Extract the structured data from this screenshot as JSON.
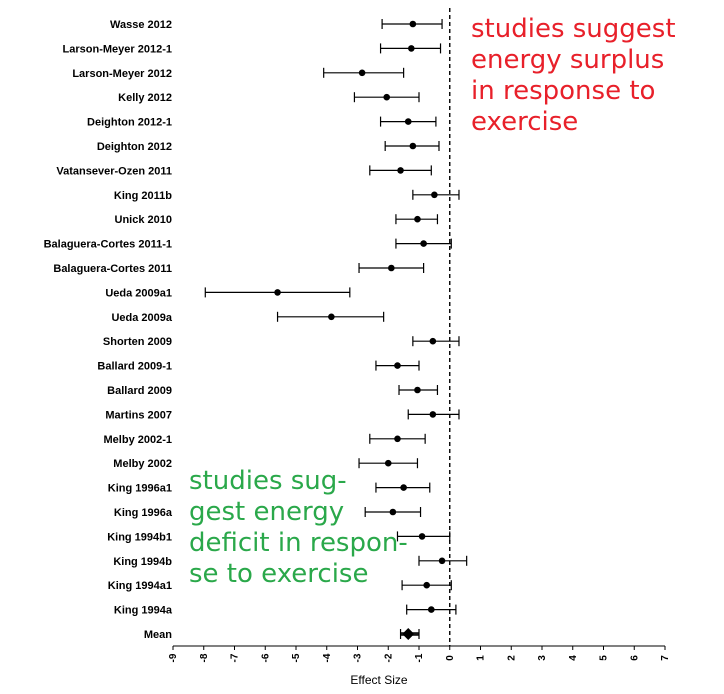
{
  "chart_data": {
    "type": "forest",
    "xlabel": "Effect Size",
    "xlim": [
      -9,
      7
    ],
    "reference_line": 0,
    "x_ticks": [
      "-9",
      "-8",
      "-7",
      "-6",
      "-5",
      "-4",
      "-3",
      "-2",
      "-1",
      "0",
      "1",
      "2",
      "3",
      "4",
      "5",
      "6",
      "7"
    ],
    "studies": [
      {
        "name": "Wasse 2012",
        "estimate": -1.2,
        "lower": -2.2,
        "upper": -0.25
      },
      {
        "name": "Larson-Meyer 2012-1",
        "estimate": -1.25,
        "lower": -2.25,
        "upper": -0.3
      },
      {
        "name": "Larson-Meyer 2012",
        "estimate": -2.85,
        "lower": -4.1,
        "upper": -1.5
      },
      {
        "name": "Kelly 2012",
        "estimate": -2.05,
        "lower": -3.1,
        "upper": -1.0
      },
      {
        "name": "Deighton 2012-1",
        "estimate": -1.35,
        "lower": -2.25,
        "upper": -0.45
      },
      {
        "name": "Deighton 2012",
        "estimate": -1.2,
        "lower": -2.1,
        "upper": -0.35
      },
      {
        "name": "Vatansever-Ozen 2011",
        "estimate": -1.6,
        "lower": -2.6,
        "upper": -0.6
      },
      {
        "name": "King 2011b",
        "estimate": -0.5,
        "lower": -1.2,
        "upper": 0.3
      },
      {
        "name": "Unick 2010",
        "estimate": -1.05,
        "lower": -1.75,
        "upper": -0.4
      },
      {
        "name": "Balaguera-Cortes 2011-1",
        "estimate": -0.85,
        "lower": -1.75,
        "upper": 0.05
      },
      {
        "name": "Balaguera-Cortes 2011",
        "estimate": -1.9,
        "lower": -2.95,
        "upper": -0.85
      },
      {
        "name": "Ueda 2009a1",
        "estimate": -5.6,
        "lower": -7.95,
        "upper": -3.25
      },
      {
        "name": "Ueda 2009a",
        "estimate": -3.85,
        "lower": -5.6,
        "upper": -2.15
      },
      {
        "name": "Shorten 2009",
        "estimate": -0.55,
        "lower": -1.2,
        "upper": 0.3
      },
      {
        "name": "Ballard 2009-1",
        "estimate": -1.7,
        "lower": -2.4,
        "upper": -1.0
      },
      {
        "name": "Ballard 2009",
        "estimate": -1.05,
        "lower": -1.65,
        "upper": -0.4
      },
      {
        "name": "Martins 2007",
        "estimate": -0.55,
        "lower": -1.35,
        "upper": 0.3
      },
      {
        "name": "Melby 2002-1",
        "estimate": -1.7,
        "lower": -2.6,
        "upper": -0.8
      },
      {
        "name": "Melby 2002",
        "estimate": -2.0,
        "lower": -2.95,
        "upper": -1.05
      },
      {
        "name": "King 1996a1",
        "estimate": -1.5,
        "lower": -2.4,
        "upper": -0.65
      },
      {
        "name": "King 1996a",
        "estimate": -1.85,
        "lower": -2.75,
        "upper": -0.95
      },
      {
        "name": "King 1994b1",
        "estimate": -0.9,
        "lower": -1.7,
        "upper": 0.0
      },
      {
        "name": "King 1994b",
        "estimate": -0.25,
        "lower": -1.0,
        "upper": 0.55
      },
      {
        "name": "King 1994a1",
        "estimate": -0.75,
        "lower": -1.55,
        "upper": 0.05
      },
      {
        "name": "King 1994a",
        "estimate": -0.6,
        "lower": -1.4,
        "upper": 0.2
      }
    ],
    "summary": {
      "name": "Mean",
      "estimate": -1.35,
      "lower": -1.6,
      "upper": -1.0
    },
    "annotations": [
      {
        "id": "surplus",
        "lines": [
          "studies suggest",
          "energy surplus",
          "in response to",
          "exercise"
        ],
        "color": "#e8202a"
      },
      {
        "id": "deficit",
        "lines": [
          "studies sug-",
          "gest energy",
          "deficit in respon-",
          "se to exercise"
        ],
        "color": "#2aa84a"
      }
    ]
  }
}
